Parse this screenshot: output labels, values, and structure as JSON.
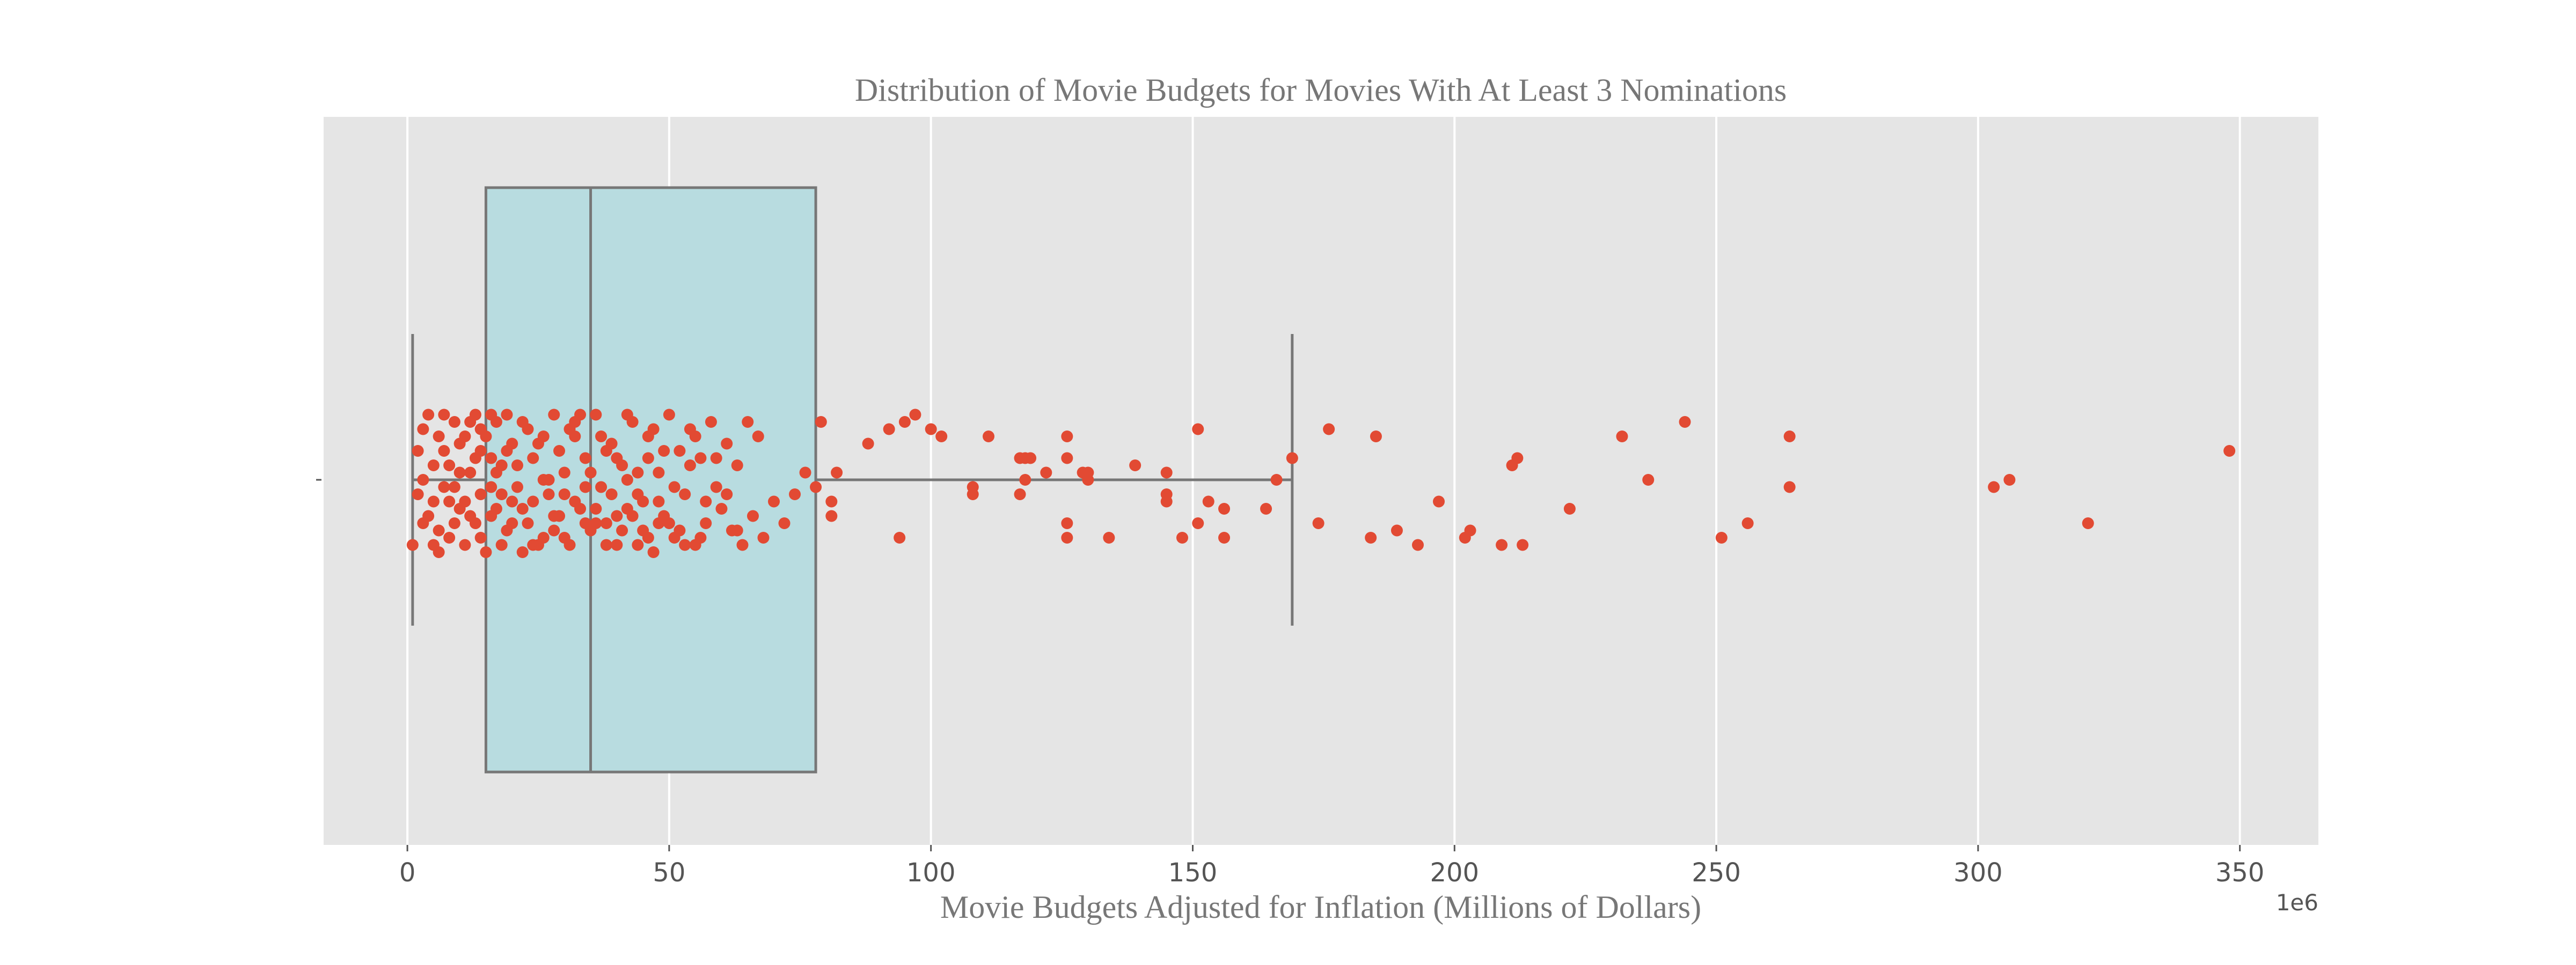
{
  "chart_data": {
    "type": "box",
    "title": "Distribution of Movie Budgets for Movies With At Least 3 Nominations",
    "xlabel": "Movie Budgets Adjusted for Inflation (Millions of Dollars)",
    "ylabel": "",
    "axis_offset_label": "1e6",
    "xlim": [
      -16,
      365
    ],
    "x_ticks": [
      0,
      50,
      100,
      150,
      200,
      250,
      300,
      350
    ],
    "grid": true,
    "orientation": "horizontal",
    "box": {
      "whisker_low": 1,
      "q1": 15,
      "median": 35,
      "q3": 78,
      "whisker_high": 169
    },
    "colors": {
      "background": "#E5E5E5",
      "grid": "#FFFFFF",
      "box_fill": "#B8DCE0",
      "box_edge": "#777777",
      "points": "#E24A33"
    },
    "points": [
      [
        1,
        0.9
      ],
      [
        2,
        -0.4
      ],
      [
        3,
        0.6
      ],
      [
        4,
        -0.9
      ],
      [
        5,
        0.3
      ],
      [
        6,
        1.0
      ],
      [
        6,
        -0.6
      ],
      [
        7,
        0.1
      ],
      [
        8,
        0.8
      ],
      [
        8,
        -0.2
      ],
      [
        9,
        -0.8
      ],
      [
        10,
        0.4
      ],
      [
        10,
        -0.5
      ],
      [
        11,
        0.9
      ],
      [
        12,
        -0.1
      ],
      [
        13,
        0.6
      ],
      [
        13,
        -0.9
      ],
      [
        14,
        0.2
      ],
      [
        14,
        -0.7
      ],
      [
        15,
        1.0
      ],
      [
        16,
        -0.3
      ],
      [
        16,
        0.5
      ],
      [
        17,
        -0.8
      ],
      [
        18,
        0.2
      ],
      [
        18,
        0.9
      ],
      [
        19,
        -0.4
      ],
      [
        20,
        0.6
      ],
      [
        21,
        -0.2
      ],
      [
        22,
        1.0
      ],
      [
        23,
        -0.7
      ],
      [
        24,
        0.3
      ],
      [
        25,
        -0.5
      ],
      [
        26,
        0.8
      ],
      [
        27,
        0.0
      ],
      [
        28,
        -0.9
      ],
      [
        29,
        0.5
      ],
      [
        30,
        -0.1
      ],
      [
        31,
        0.9
      ],
      [
        32,
        -0.6
      ],
      [
        33,
        0.4
      ],
      [
        34,
        -0.3
      ],
      [
        35,
        0.7
      ],
      [
        36,
        -0.9
      ],
      [
        37,
        0.1
      ],
      [
        38,
        0.6
      ],
      [
        39,
        -0.5
      ],
      [
        40,
        0.9
      ],
      [
        41,
        -0.2
      ],
      [
        42,
        0.4
      ],
      [
        43,
        -0.8
      ],
      [
        44,
        0.2
      ],
      [
        45,
        0.7
      ],
      [
        46,
        -0.6
      ],
      [
        47,
        1.0
      ],
      [
        48,
        -0.1
      ],
      [
        49,
        0.5
      ],
      [
        50,
        -0.9
      ],
      [
        51,
        0.8
      ],
      [
        52,
        -0.4
      ],
      [
        53,
        0.2
      ],
      [
        54,
        -0.7
      ],
      [
        55,
        0.9
      ],
      [
        56,
        -0.3
      ],
      [
        57,
        0.6
      ],
      [
        58,
        -0.8
      ],
      [
        59,
        0.1
      ],
      [
        60,
        0.4
      ],
      [
        61,
        -0.5
      ],
      [
        62,
        0.7
      ],
      [
        63,
        -0.2
      ],
      [
        64,
        0.9
      ],
      [
        65,
        -0.8
      ],
      [
        66,
        0.5
      ],
      [
        67,
        -0.6
      ],
      [
        68,
        0.8
      ],
      [
        70,
        0.3
      ],
      [
        72,
        0.6
      ],
      [
        74,
        0.2
      ],
      [
        76,
        -0.1
      ],
      [
        78,
        0.1
      ],
      [
        79,
        -0.8
      ],
      [
        2,
        0.2
      ],
      [
        3,
        -0.7
      ],
      [
        4,
        0.5
      ],
      [
        5,
        -0.2
      ],
      [
        6,
        0.7
      ],
      [
        7,
        -0.9
      ],
      [
        8,
        0.3
      ],
      [
        9,
        0.6
      ],
      [
        10,
        -0.1
      ],
      [
        11,
        -0.6
      ],
      [
        12,
        0.5
      ],
      [
        13,
        -0.3
      ],
      [
        14,
        0.8
      ],
      [
        15,
        -0.6
      ],
      [
        16,
        -0.9
      ],
      [
        17,
        0.4
      ],
      [
        18,
        -0.2
      ],
      [
        19,
        0.7
      ],
      [
        20,
        -0.5
      ],
      [
        21,
        0.1
      ],
      [
        22,
        -0.8
      ],
      [
        23,
        0.6
      ],
      [
        24,
        -0.3
      ],
      [
        25,
        0.9
      ],
      [
        26,
        -0.6
      ],
      [
        27,
        0.2
      ],
      [
        28,
        0.5
      ],
      [
        29,
        -0.4
      ],
      [
        30,
        0.8
      ],
      [
        31,
        -0.7
      ],
      [
        32,
        0.3
      ],
      [
        33,
        -0.9
      ],
      [
        34,
        0.6
      ],
      [
        35,
        -0.1
      ],
      [
        36,
        0.4
      ],
      [
        37,
        -0.6
      ],
      [
        38,
        0.9
      ],
      [
        39,
        0.2
      ],
      [
        40,
        -0.3
      ],
      [
        41,
        0.7
      ],
      [
        42,
        -0.9
      ],
      [
        43,
        0.5
      ],
      [
        44,
        -0.1
      ],
      [
        45,
        0.3
      ],
      [
        46,
        0.8
      ],
      [
        47,
        -0.7
      ],
      [
        48,
        0.6
      ],
      [
        49,
        -0.4
      ],
      [
        51,
        0.1
      ],
      [
        53,
        0.9
      ],
      [
        55,
        -0.6
      ],
      [
        57,
        0.3
      ],
      [
        59,
        -0.3
      ],
      [
        61,
        0.2
      ],
      [
        63,
        0.7
      ],
      [
        3,
        0.0
      ],
      [
        5,
        0.9
      ],
      [
        7,
        -0.4
      ],
      [
        9,
        0.1
      ],
      [
        11,
        0.3
      ],
      [
        12,
        -0.8
      ],
      [
        14,
        -0.4
      ],
      [
        16,
        0.1
      ],
      [
        17,
        -0.1
      ],
      [
        19,
        -0.9
      ],
      [
        20,
        0.3
      ],
      [
        22,
        0.4
      ],
      [
        24,
        0.9
      ],
      [
        26,
        0.0
      ],
      [
        28,
        0.7
      ],
      [
        30,
        0.2
      ],
      [
        32,
        -0.8
      ],
      [
        34,
        0.1
      ],
      [
        36,
        0.6
      ],
      [
        38,
        -0.4
      ],
      [
        40,
        0.5
      ],
      [
        42,
        0.0
      ],
      [
        44,
        0.9
      ],
      [
        46,
        -0.3
      ],
      [
        48,
        0.3
      ],
      [
        50,
        0.6
      ],
      [
        52,
        0.7
      ],
      [
        54,
        -0.2
      ],
      [
        56,
        0.8
      ],
      [
        81,
        0.5
      ],
      [
        81,
        0.3
      ],
      [
        82,
        -0.1
      ],
      [
        88,
        -0.5
      ],
      [
        92,
        -0.7
      ],
      [
        94,
        0.8
      ],
      [
        95,
        -0.8
      ],
      [
        97,
        -0.9
      ],
      [
        100,
        -0.7
      ],
      [
        102,
        -0.6
      ],
      [
        108,
        0.2
      ],
      [
        108,
        0.1
      ],
      [
        111,
        -0.6
      ],
      [
        117,
        -0.3
      ],
      [
        117,
        0.2
      ],
      [
        118,
        0.0
      ],
      [
        118,
        -0.3
      ],
      [
        119,
        -0.3
      ],
      [
        122,
        -0.1
      ],
      [
        126,
        0.6
      ],
      [
        126,
        0.8
      ],
      [
        126,
        -0.6
      ],
      [
        126,
        -0.3
      ],
      [
        129,
        -0.1
      ],
      [
        130,
        0.0
      ],
      [
        130,
        -0.1
      ],
      [
        134,
        0.8
      ],
      [
        139,
        -0.2
      ],
      [
        145,
        0.3
      ],
      [
        145,
        0.2
      ],
      [
        145,
        -0.1
      ],
      [
        148,
        0.8
      ],
      [
        151,
        0.6
      ],
      [
        151,
        -0.7
      ],
      [
        153,
        0.3
      ],
      [
        156,
        0.8
      ],
      [
        156,
        0.4
      ],
      [
        164,
        0.4
      ],
      [
        166,
        0.0
      ],
      [
        169,
        -0.3
      ],
      [
        174,
        0.6
      ],
      [
        176,
        -0.7
      ],
      [
        184,
        0.8
      ],
      [
        185,
        -0.6
      ],
      [
        189,
        0.7
      ],
      [
        193,
        0.9
      ],
      [
        197,
        0.3
      ],
      [
        202,
        0.8
      ],
      [
        203,
        0.7
      ],
      [
        209,
        0.9
      ],
      [
        211,
        -0.2
      ],
      [
        212,
        -0.3
      ],
      [
        213,
        0.9
      ],
      [
        222,
        0.4
      ],
      [
        232,
        -0.6
      ],
      [
        237,
        0.0
      ],
      [
        244,
        -0.8
      ],
      [
        251,
        0.8
      ],
      [
        256,
        0.6
      ],
      [
        264,
        0.1
      ],
      [
        264,
        -0.6
      ],
      [
        303,
        0.1
      ],
      [
        306,
        0.0
      ],
      [
        321,
        0.6
      ],
      [
        348,
        -0.4
      ]
    ]
  }
}
